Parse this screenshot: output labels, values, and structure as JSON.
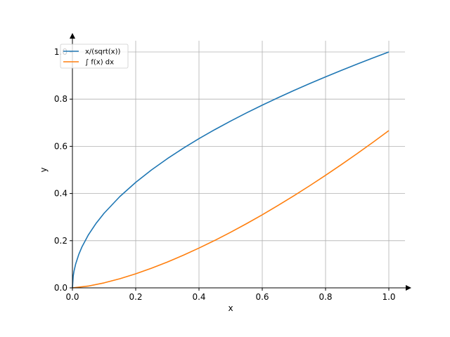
{
  "chart_data": {
    "type": "line",
    "xlabel": "x",
    "ylabel": "y",
    "xlim": [
      0.0,
      1.05
    ],
    "ylim": [
      0.0,
      1.05
    ],
    "grid": true,
    "legend_position": "top-left",
    "x_ticks": [
      0.0,
      0.2,
      0.4,
      0.6,
      0.8,
      1.0
    ],
    "y_ticks": [
      0.0,
      0.2,
      0.4,
      0.6,
      0.8,
      1.0
    ],
    "x_tick_labels": [
      "0.0",
      "0.2",
      "0.4",
      "0.6",
      "0.8",
      "1.0"
    ],
    "y_tick_labels": [
      "0.0",
      "0.2",
      "0.4",
      "0.6",
      "0.8",
      "1.0"
    ],
    "series": [
      {
        "name": "x/(sqrt(x))",
        "color": "#1f77b4",
        "x": [
          0,
          0.0025,
          0.005,
          0.01,
          0.02,
          0.03,
          0.05,
          0.075,
          0.1,
          0.15,
          0.2,
          0.25,
          0.3,
          0.35,
          0.4,
          0.45,
          0.5,
          0.55,
          0.6,
          0.65,
          0.7,
          0.75,
          0.8,
          0.85,
          0.9,
          0.95,
          1.0
        ],
        "y": [
          0,
          0.05,
          0.0707,
          0.1,
          0.1414,
          0.1732,
          0.2236,
          0.2739,
          0.3162,
          0.3873,
          0.4472,
          0.5,
          0.5477,
          0.5916,
          0.6325,
          0.6708,
          0.7071,
          0.7416,
          0.7746,
          0.8062,
          0.8367,
          0.866,
          0.8944,
          0.922,
          0.9487,
          0.9747,
          1.0
        ]
      },
      {
        "name": "∫ f(x) dx",
        "color": "#ff7f0e",
        "x": [
          0,
          0.05,
          0.1,
          0.15,
          0.2,
          0.25,
          0.3,
          0.35,
          0.4,
          0.45,
          0.5,
          0.55,
          0.6,
          0.65,
          0.7,
          0.75,
          0.8,
          0.85,
          0.9,
          0.95,
          1.0
        ],
        "y": [
          0,
          0.0075,
          0.0211,
          0.0387,
          0.0596,
          0.0833,
          0.1095,
          0.138,
          0.1687,
          0.2012,
          0.2357,
          0.2719,
          0.3098,
          0.3494,
          0.3904,
          0.433,
          0.477,
          0.5225,
          0.5692,
          0.6173,
          0.6667
        ]
      }
    ]
  }
}
